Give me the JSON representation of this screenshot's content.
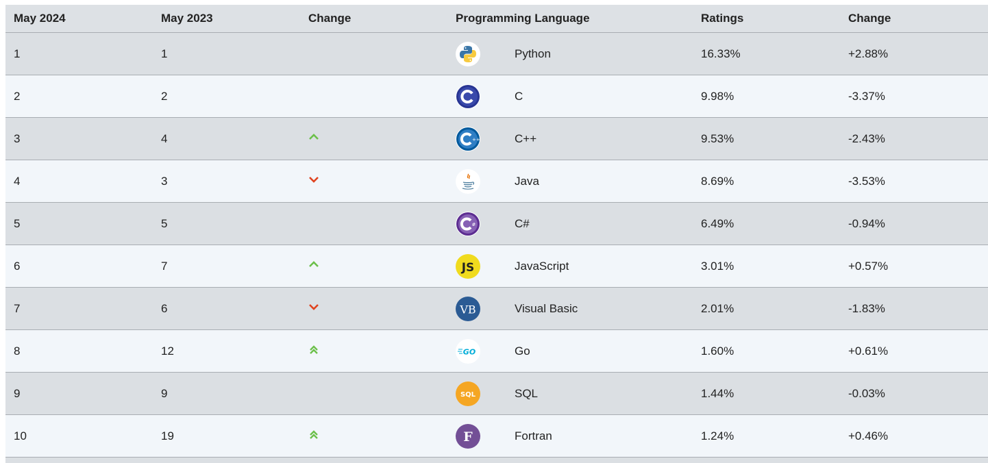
{
  "headers": {
    "current": "May 2024",
    "previous": "May 2023",
    "change": "Change",
    "language": "Programming Language",
    "ratings": "Ratings",
    "rating_change": "Change"
  },
  "rows": [
    {
      "current": "1",
      "previous": "1",
      "trend": "none",
      "language": "Python",
      "logo": "python-icon",
      "ratings": "16.33%",
      "change": "+2.88%"
    },
    {
      "current": "2",
      "previous": "2",
      "trend": "none",
      "language": "C",
      "logo": "c-icon",
      "ratings": "9.98%",
      "change": "-3.37%"
    },
    {
      "current": "3",
      "previous": "4",
      "trend": "up",
      "language": "C++",
      "logo": "cpp-icon",
      "ratings": "9.53%",
      "change": "-2.43%"
    },
    {
      "current": "4",
      "previous": "3",
      "trend": "down",
      "language": "Java",
      "logo": "java-icon",
      "ratings": "8.69%",
      "change": "-3.53%"
    },
    {
      "current": "5",
      "previous": "5",
      "trend": "none",
      "language": "C#",
      "logo": "csharp-icon",
      "ratings": "6.49%",
      "change": "-0.94%"
    },
    {
      "current": "6",
      "previous": "7",
      "trend": "up",
      "language": "JavaScript",
      "logo": "javascript-icon",
      "ratings": "3.01%",
      "change": "+0.57%"
    },
    {
      "current": "7",
      "previous": "6",
      "trend": "down",
      "language": "Visual Basic",
      "logo": "visual-basic-icon",
      "ratings": "2.01%",
      "change": "-1.83%"
    },
    {
      "current": "8",
      "previous": "12",
      "trend": "up2",
      "language": "Go",
      "logo": "go-icon",
      "ratings": "1.60%",
      "change": "+0.61%"
    },
    {
      "current": "9",
      "previous": "9",
      "trend": "none",
      "language": "SQL",
      "logo": "sql-icon",
      "ratings": "1.44%",
      "change": "-0.03%"
    },
    {
      "current": "10",
      "previous": "19",
      "trend": "up2",
      "language": "Fortran",
      "logo": "fortran-icon",
      "ratings": "1.24%",
      "change": "+0.46%"
    }
  ],
  "colors": {
    "up": "#6cc04a",
    "down": "#e0431f"
  }
}
